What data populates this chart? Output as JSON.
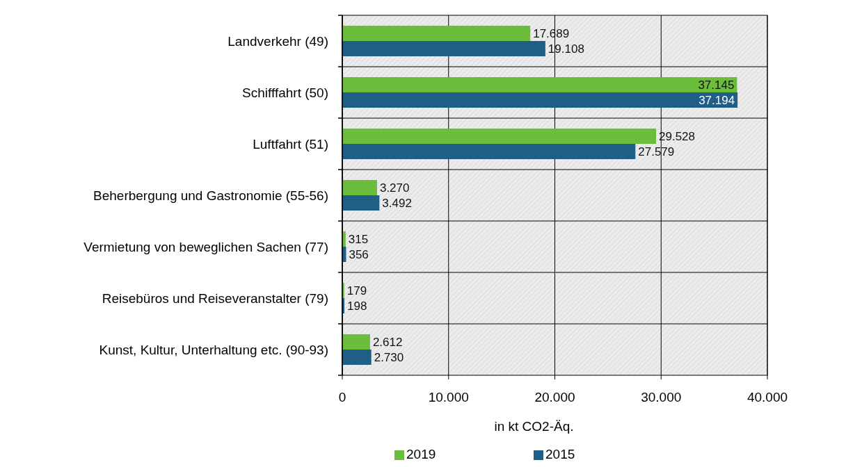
{
  "chart_data": {
    "type": "bar",
    "orientation": "horizontal",
    "xlabel": "in kt CO2-Äq.",
    "categories": [
      "Landverkehr (49)",
      "Schifffahrt (50)",
      "Luftfahrt (51)",
      "Beherbergung und Gastronomie (55-56)",
      "Vermietung von beweglichen Sachen (77)",
      "Reisebüros und Reiseveranstalter (79)",
      "Kunst, Kultur, Unterhaltung etc. (90-93)"
    ],
    "series": [
      {
        "name": "2019",
        "color": "#6cbd3c",
        "values": [
          17689,
          37145,
          29528,
          3270,
          315,
          179,
          2612
        ],
        "value_labels": [
          "17.689",
          "37.145",
          "29.528",
          "3.270",
          "315",
          "179",
          "2.612"
        ]
      },
      {
        "name": "2015",
        "color": "#1e5e87",
        "values": [
          19108,
          37194,
          27579,
          3492,
          356,
          198,
          2730
        ],
        "value_labels": [
          "19.108",
          "37.194",
          "27.579",
          "3.492",
          "356",
          "198",
          "2.730"
        ]
      }
    ],
    "xlim": [
      0,
      40000
    ],
    "xticks": [
      0,
      {
        "value": 10000,
        "label": "10.000"
      },
      {
        "value": 20000,
        "label": "20.000"
      },
      {
        "value": 30000,
        "label": "30.000"
      },
      {
        "value": 40000,
        "label": "40.000"
      }
    ],
    "grid": "x",
    "legend": "bottom"
  }
}
